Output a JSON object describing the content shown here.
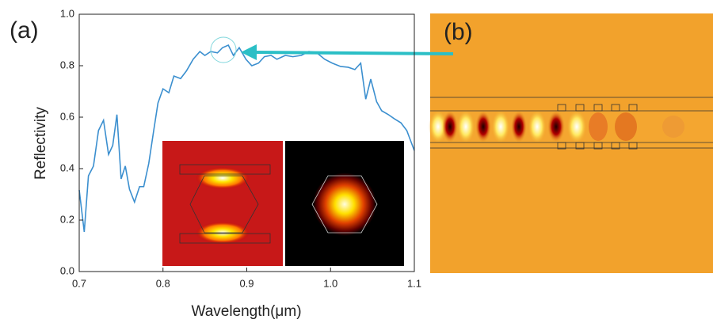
{
  "chart_data": {
    "type": "line",
    "panel_labels": [
      "(a)",
      "(b)"
    ],
    "x_label": "Wavelength(μm)",
    "y_label": "Reflectivity",
    "x": [
      0.7,
      0.706,
      0.711,
      0.717,
      0.723,
      0.729,
      0.735,
      0.74,
      0.745,
      0.75,
      0.755,
      0.76,
      0.766,
      0.772,
      0.777,
      0.783,
      0.789,
      0.794,
      0.8,
      0.807,
      0.813,
      0.821,
      0.828,
      0.836,
      0.844,
      0.85,
      0.857,
      0.865,
      0.871,
      0.878,
      0.884,
      0.891,
      0.899,
      0.906,
      0.914,
      0.921,
      0.929,
      0.936,
      0.946,
      0.955,
      0.965,
      0.974,
      0.983,
      0.993,
      1.002,
      1.012,
      1.021,
      1.029,
      1.036,
      1.042,
      1.048,
      1.055,
      1.061,
      1.069,
      1.076,
      1.084,
      1.091,
      1.1
    ],
    "values": [
      0.317,
      0.154,
      0.372,
      0.41,
      0.548,
      0.588,
      0.455,
      0.49,
      0.61,
      0.36,
      0.41,
      0.32,
      0.27,
      0.33,
      0.33,
      0.42,
      0.55,
      0.655,
      0.71,
      0.695,
      0.76,
      0.75,
      0.78,
      0.825,
      0.855,
      0.84,
      0.855,
      0.85,
      0.87,
      0.88,
      0.84,
      0.87,
      0.825,
      0.8,
      0.81,
      0.835,
      0.84,
      0.825,
      0.84,
      0.835,
      0.84,
      0.855,
      0.852,
      0.825,
      0.81,
      0.797,
      0.794,
      0.785,
      0.81,
      0.67,
      0.748,
      0.66,
      0.625,
      0.61,
      0.594,
      0.578,
      0.548,
      0.47
    ],
    "color": "#3b8fcf",
    "xlim": [
      0.7,
      1.1
    ],
    "ylim": [
      0,
      1
    ],
    "xticks": [
      0.7,
      0.8,
      0.9,
      {
        "value": 1,
        "label": "1.0"
      },
      1.1
    ],
    "yticks": [
      {
        "value": 0,
        "label": "0.0"
      },
      0.2,
      0.4,
      0.6,
      0.8,
      {
        "value": 1,
        "label": "1.0"
      }
    ]
  }
}
